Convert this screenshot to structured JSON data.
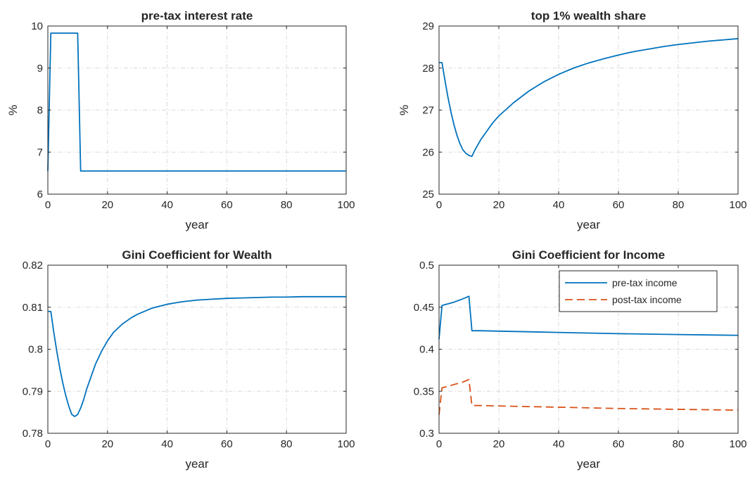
{
  "chart_data": [
    {
      "type": "line",
      "title": "pre-tax interest rate",
      "xlabel": "year",
      "ylabel": "%",
      "xlim": [
        0,
        100
      ],
      "ylim": [
        6,
        10
      ],
      "xticks": [
        0,
        20,
        40,
        60,
        80,
        100
      ],
      "yticks": [
        6,
        7,
        8,
        9,
        10
      ],
      "grid": true,
      "series": [
        {
          "color": "#0072BD",
          "dash": "solid",
          "x": [
            0,
            1,
            10,
            11,
            100
          ],
          "y": [
            6.55,
            9.83,
            9.83,
            6.55,
            6.55
          ]
        }
      ]
    },
    {
      "type": "line",
      "title": "top 1% wealth share",
      "xlabel": "year",
      "ylabel": "%",
      "xlim": [
        0,
        100
      ],
      "ylim": [
        25,
        29
      ],
      "xticks": [
        0,
        20,
        40,
        60,
        80,
        100
      ],
      "yticks": [
        25,
        26,
        27,
        28,
        29
      ],
      "grid": true,
      "series": [
        {
          "color": "#0072BD",
          "dash": "solid",
          "x": [
            0,
            1,
            2,
            3,
            4,
            5,
            6,
            7,
            8,
            9,
            10,
            11,
            12,
            14,
            16,
            18,
            20,
            25,
            30,
            35,
            40,
            45,
            50,
            55,
            60,
            65,
            70,
            75,
            80,
            85,
            90,
            95,
            100
          ],
          "y": [
            28.13,
            28.13,
            27.7,
            27.3,
            26.95,
            26.65,
            26.4,
            26.2,
            26.05,
            25.97,
            25.92,
            25.9,
            26.05,
            26.3,
            26.5,
            26.7,
            26.86,
            27.18,
            27.45,
            27.67,
            27.85,
            28.0,
            28.12,
            28.22,
            28.31,
            28.39,
            28.45,
            28.51,
            28.56,
            28.6,
            28.64,
            28.67,
            28.7
          ]
        }
      ]
    },
    {
      "type": "line",
      "title": "Gini Coefficient for Wealth",
      "xlabel": "year",
      "ylabel": "",
      "xlim": [
        0,
        100
      ],
      "ylim": [
        0.78,
        0.82
      ],
      "xticks": [
        0,
        20,
        40,
        60,
        80,
        100
      ],
      "yticks": [
        0.78,
        0.79,
        0.8,
        0.81,
        0.82
      ],
      "ytick_labels": [
        "0.78",
        "0.79",
        "0.8",
        "0.81",
        "0.82"
      ],
      "grid": true,
      "series": [
        {
          "color": "#0072BD",
          "dash": "solid",
          "x": [
            0,
            1,
            2,
            3,
            4,
            5,
            6,
            7,
            8,
            9,
            10,
            11,
            12,
            13,
            14,
            16,
            18,
            20,
            22,
            25,
            28,
            30,
            35,
            40,
            45,
            50,
            55,
            60,
            65,
            70,
            75,
            80,
            85,
            90,
            95,
            100
          ],
          "y": [
            0.809,
            0.809,
            0.804,
            0.7995,
            0.7955,
            0.792,
            0.789,
            0.7865,
            0.7845,
            0.784,
            0.7845,
            0.786,
            0.788,
            0.7905,
            0.7925,
            0.7965,
            0.7995,
            0.802,
            0.804,
            0.806,
            0.8075,
            0.8083,
            0.8098,
            0.8107,
            0.8113,
            0.8117,
            0.8119,
            0.8121,
            0.8122,
            0.8123,
            0.8124,
            0.8124,
            0.8125,
            0.8125,
            0.8125,
            0.8125
          ]
        }
      ]
    },
    {
      "type": "line",
      "title": "Gini Coefficient for Income",
      "xlabel": "year",
      "ylabel": "",
      "xlim": [
        0,
        100
      ],
      "ylim": [
        0.3,
        0.5
      ],
      "xticks": [
        0,
        20,
        40,
        60,
        80,
        100
      ],
      "yticks": [
        0.3,
        0.35,
        0.4,
        0.45,
        0.5
      ],
      "ytick_labels": [
        "0.3",
        "0.35",
        "0.4",
        "0.45",
        "0.5"
      ],
      "grid": true,
      "legend": "top-right",
      "series": [
        {
          "name": "pre-tax income",
          "color": "#0072BD",
          "dash": "solid",
          "x": [
            0,
            1,
            2,
            5,
            8,
            10,
            11,
            14,
            20,
            40,
            60,
            80,
            100
          ],
          "y": [
            0.412,
            0.452,
            0.453,
            0.456,
            0.46,
            0.463,
            0.422,
            0.422,
            0.4215,
            0.42,
            0.4185,
            0.4175,
            0.4165
          ]
        },
        {
          "name": "post-tax income",
          "color": "#D95319",
          "dash": "dashed",
          "x": [
            0,
            1,
            2,
            5,
            8,
            10,
            11,
            14,
            20,
            40,
            60,
            80,
            100
          ],
          "y": [
            0.322,
            0.354,
            0.355,
            0.358,
            0.361,
            0.364,
            0.333,
            0.333,
            0.3325,
            0.331,
            0.3295,
            0.3285,
            0.3275
          ]
        }
      ]
    }
  ]
}
